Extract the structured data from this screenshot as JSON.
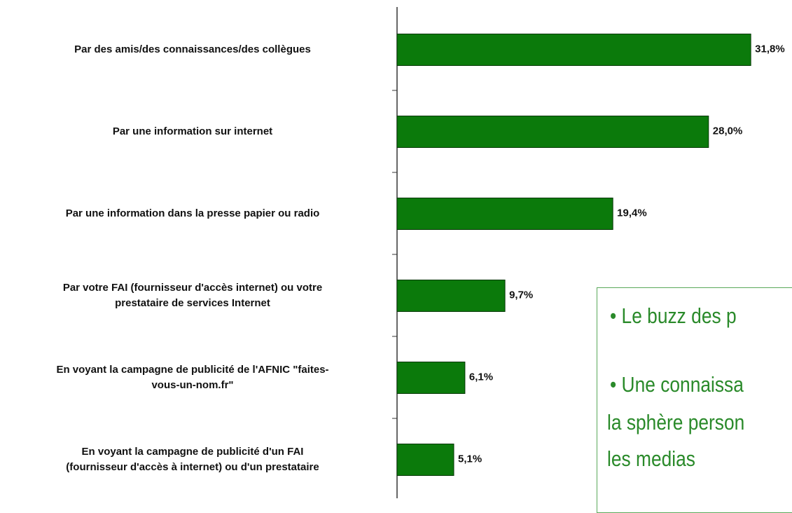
{
  "chart_data": {
    "type": "bar",
    "orientation": "horizontal",
    "categories": [
      "Par des amis/des connaissances/des collègues",
      "Par une information sur internet",
      "Par une information dans la presse papier ou radio",
      "Par votre FAI (fournisseur d'accès internet) ou votre\nprestataire de services Internet",
      "En voyant la campagne de publicité de l'AFNIC \"faites-\nvous-un-nom.fr\"",
      "En voyant  la campagne de publicité d'un FAI\n(fournisseur d'accès à internet) ou d'un prestataire"
    ],
    "values": [
      31.8,
      28.0,
      19.4,
      9.7,
      6.1,
      5.1
    ],
    "value_labels": [
      "31,8%",
      "28,0%",
      "19,4%",
      "9,7%",
      "6,1%",
      "5,1%"
    ],
    "color": "#0b7a0b",
    "xlim": [
      0,
      35
    ],
    "annotations": [
      "Le buzz des p",
      "Une connaissa",
      "la sphère person",
      "les medias"
    ]
  }
}
